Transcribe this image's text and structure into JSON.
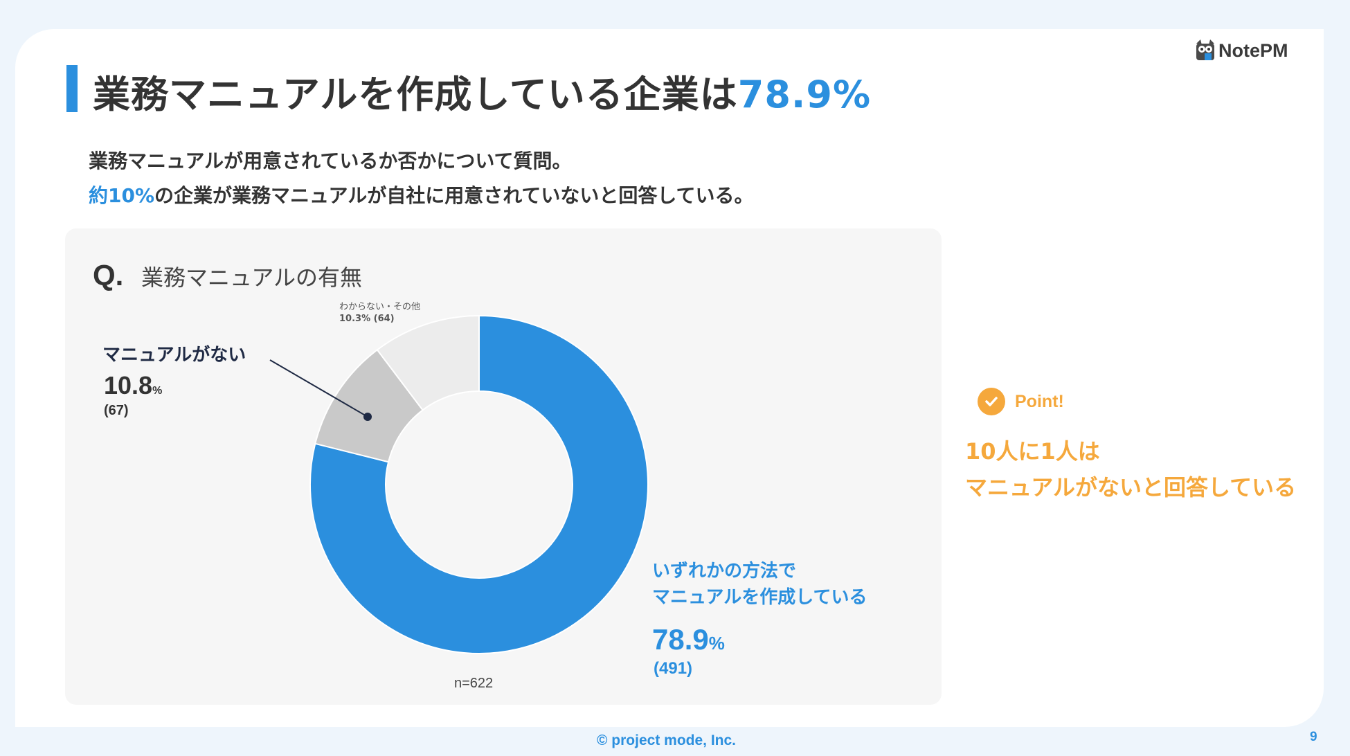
{
  "header": {
    "title_main": "業務マニュアルを作成している企業は",
    "title_accent": "78.9%",
    "logo_text": "NotePM"
  },
  "lead": {
    "line1": "業務マニュアルが用意されているか否かについて質問。",
    "line2_highlight": "約10%",
    "line2_rest": "の企業が業務マニュアルが自社に用意されていないと回答している。"
  },
  "question": {
    "prefix": "Q.",
    "text": "業務マニュアルの有無"
  },
  "chart_data": {
    "type": "pie",
    "donut": true,
    "n_label": "n=622",
    "categories": [
      "いずれかの方法でマニュアルを作成している",
      "マニュアルがない",
      "わからない・その他"
    ],
    "values": [
      78.9,
      10.8,
      10.3
    ],
    "counts": [
      491,
      67,
      64
    ],
    "colors": [
      "#2b8fde",
      "#c9c9c9",
      "#ececec"
    ],
    "labels": {
      "made_line1": "いずれかの方法で",
      "made_line2": "マニュアルを作成している",
      "made_pct": "78.9",
      "made_unit": "%",
      "made_count": "(491)",
      "none_name": "マニュアルがない",
      "none_pct": "10.8",
      "none_unit": "%",
      "none_count": "(67)",
      "other_name": "わからない・その他",
      "other_value": "10.3% (64)"
    }
  },
  "point": {
    "label": "Point!",
    "line1": "10人に1人は",
    "line2": "マニュアルがないと回答している"
  },
  "footer": {
    "copyright": "© project mode, Inc.",
    "page": "9"
  }
}
